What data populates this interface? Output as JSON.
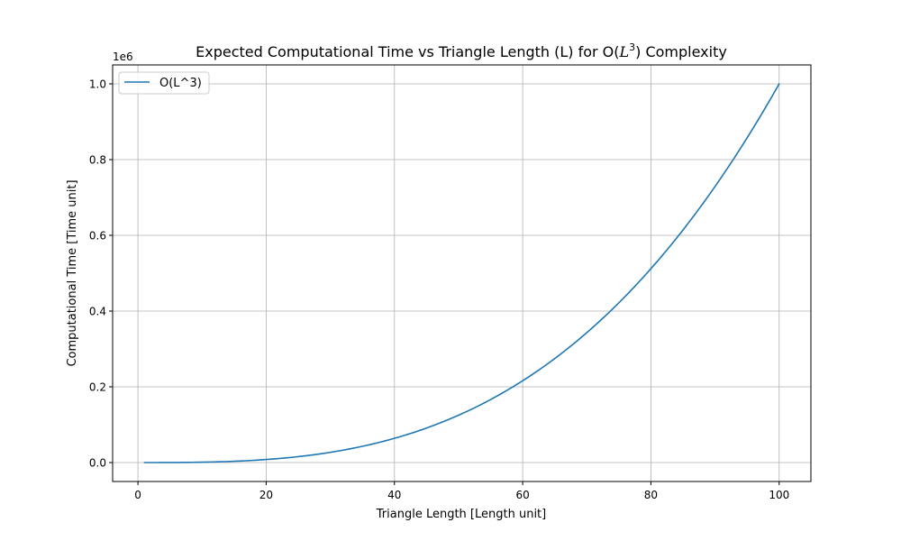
{
  "chart_data": {
    "type": "line",
    "title_prefix": "Expected Computational Time vs Triangle Length (L) for O(",
    "title_math_base": "L",
    "title_math_exp": "3",
    "title_suffix": ") Complexity",
    "xlabel": "Triangle Length [Length unit]",
    "ylabel": "Computational Time [Time unit]",
    "y_offset_label": "1e6",
    "y_scale": 1000000,
    "xlim": [
      -3.95,
      104.95
    ],
    "ylim": [
      -49999.95,
      1049999.95
    ],
    "x_ticks": [
      0,
      20,
      40,
      60,
      80,
      100
    ],
    "x_tick_labels": [
      "0",
      "20",
      "40",
      "60",
      "80",
      "100"
    ],
    "y_ticks": [
      0,
      200000,
      400000,
      600000,
      800000,
      1000000
    ],
    "y_tick_labels": [
      "0.0",
      "0.2",
      "0.4",
      "0.6",
      "0.8",
      "1.0"
    ],
    "grid": true,
    "legend_position": "top-left",
    "series": [
      {
        "name": "O(L^3)",
        "color": "#1f77b4",
        "function": "x^3",
        "x_range": [
          1,
          100
        ],
        "x": [
          1,
          5,
          10,
          15,
          20,
          25,
          30,
          35,
          40,
          45,
          50,
          55,
          60,
          65,
          70,
          75,
          80,
          85,
          90,
          95,
          100
        ],
        "y": [
          1,
          125,
          1000,
          3375,
          8000,
          15625,
          27000,
          42875,
          64000,
          91125,
          125000,
          166375,
          216000,
          274625,
          343000,
          421875,
          512000,
          614125,
          729000,
          857375,
          1000000
        ]
      }
    ]
  }
}
